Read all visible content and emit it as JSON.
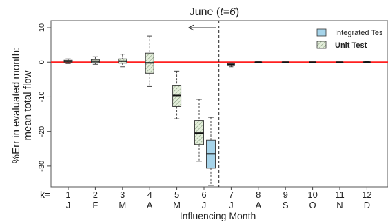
{
  "chart_data": {
    "type": "boxplot",
    "title_prefix": "June (",
    "title_var": "t=6",
    "title_suffix": ")",
    "ylabel_lines": [
      "%Err in evaluated month:",
      "mean total flow"
    ],
    "xlabel": "Influencing Month",
    "k_label": "k=",
    "ylim": [
      -36,
      12
    ],
    "yticks": [
      10,
      0,
      -10,
      -20,
      -30
    ],
    "grid": false,
    "reference_line": 0,
    "reference_line_color": "#ff2020",
    "divider_after_k": 6,
    "legend_position": "top-right",
    "k_values": [
      "1",
      "2",
      "3",
      "4",
      "5",
      "6",
      "7",
      "8",
      "9",
      "10",
      "11",
      "12"
    ],
    "month_letters": [
      "J",
      "F",
      "M",
      "A",
      "M",
      "J",
      "J",
      "A",
      "S",
      "O",
      "N",
      "D"
    ],
    "series": [
      {
        "name": "Unit Test",
        "pattern": "hatched-green",
        "boxes": [
          {
            "k": 1,
            "whisker_low": -0.4,
            "q1": 0.0,
            "median": 0.3,
            "q3": 0.6,
            "whisker_high": 1.0
          },
          {
            "k": 2,
            "whisker_low": -0.6,
            "q1": -0.1,
            "median": 0.3,
            "q3": 0.8,
            "whisker_high": 1.6
          },
          {
            "k": 3,
            "whisker_low": -1.3,
            "q1": -0.3,
            "median": 0.3,
            "q3": 1.0,
            "whisker_high": 2.3
          },
          {
            "k": 4,
            "whisker_low": -7.0,
            "q1": -3.2,
            "median": -0.2,
            "q3": 2.6,
            "whisker_high": 7.6
          },
          {
            "k": 5,
            "whisker_low": -16.3,
            "q1": -12.8,
            "median": -9.6,
            "q3": -6.8,
            "whisker_high": -2.6
          },
          {
            "k": 6,
            "whisker_low": -28.6,
            "q1": -23.8,
            "median": -20.5,
            "q3": -16.8,
            "whisker_high": -10.7
          }
        ]
      },
      {
        "name": "Integrated Tes",
        "pattern": "solid-blue",
        "boxes": [
          {
            "k": 6,
            "whisker_low": -35.6,
            "q1": -30.6,
            "median": -26.5,
            "q3": -22.5,
            "whisker_high": -15.9
          },
          {
            "k": 7,
            "whisker_low": -1.3,
            "q1": -1.0,
            "median": -0.7,
            "q3": -0.4,
            "whisker_high": -0.2
          },
          {
            "k": 8,
            "whisker_low": -0.2,
            "q1": -0.1,
            "median": 0.0,
            "q3": 0.0,
            "whisker_high": 0.1
          },
          {
            "k": 9,
            "whisker_low": -0.1,
            "q1": -0.05,
            "median": 0.0,
            "q3": 0.0,
            "whisker_high": 0.05
          },
          {
            "k": 10,
            "whisker_low": -0.1,
            "q1": -0.05,
            "median": 0.0,
            "q3": 0.0,
            "whisker_high": 0.05
          },
          {
            "k": 11,
            "whisker_low": -0.1,
            "q1": -0.05,
            "median": 0.0,
            "q3": 0.0,
            "whisker_high": 0.05
          },
          {
            "k": 12,
            "whisker_low": -0.2,
            "q1": -0.1,
            "median": 0.0,
            "q3": 0.1,
            "whisker_high": 0.2
          }
        ]
      }
    ],
    "legend": [
      {
        "label": "Integrated Tes",
        "pattern": "solid-blue"
      },
      {
        "label": "Unit Test",
        "pattern": "hatched-green"
      }
    ]
  },
  "colors": {
    "blue_fill": "#a6d4ea",
    "green_fill": "#e4eedb",
    "hatch": "#7f9a78",
    "red_line": "#ff2020"
  }
}
